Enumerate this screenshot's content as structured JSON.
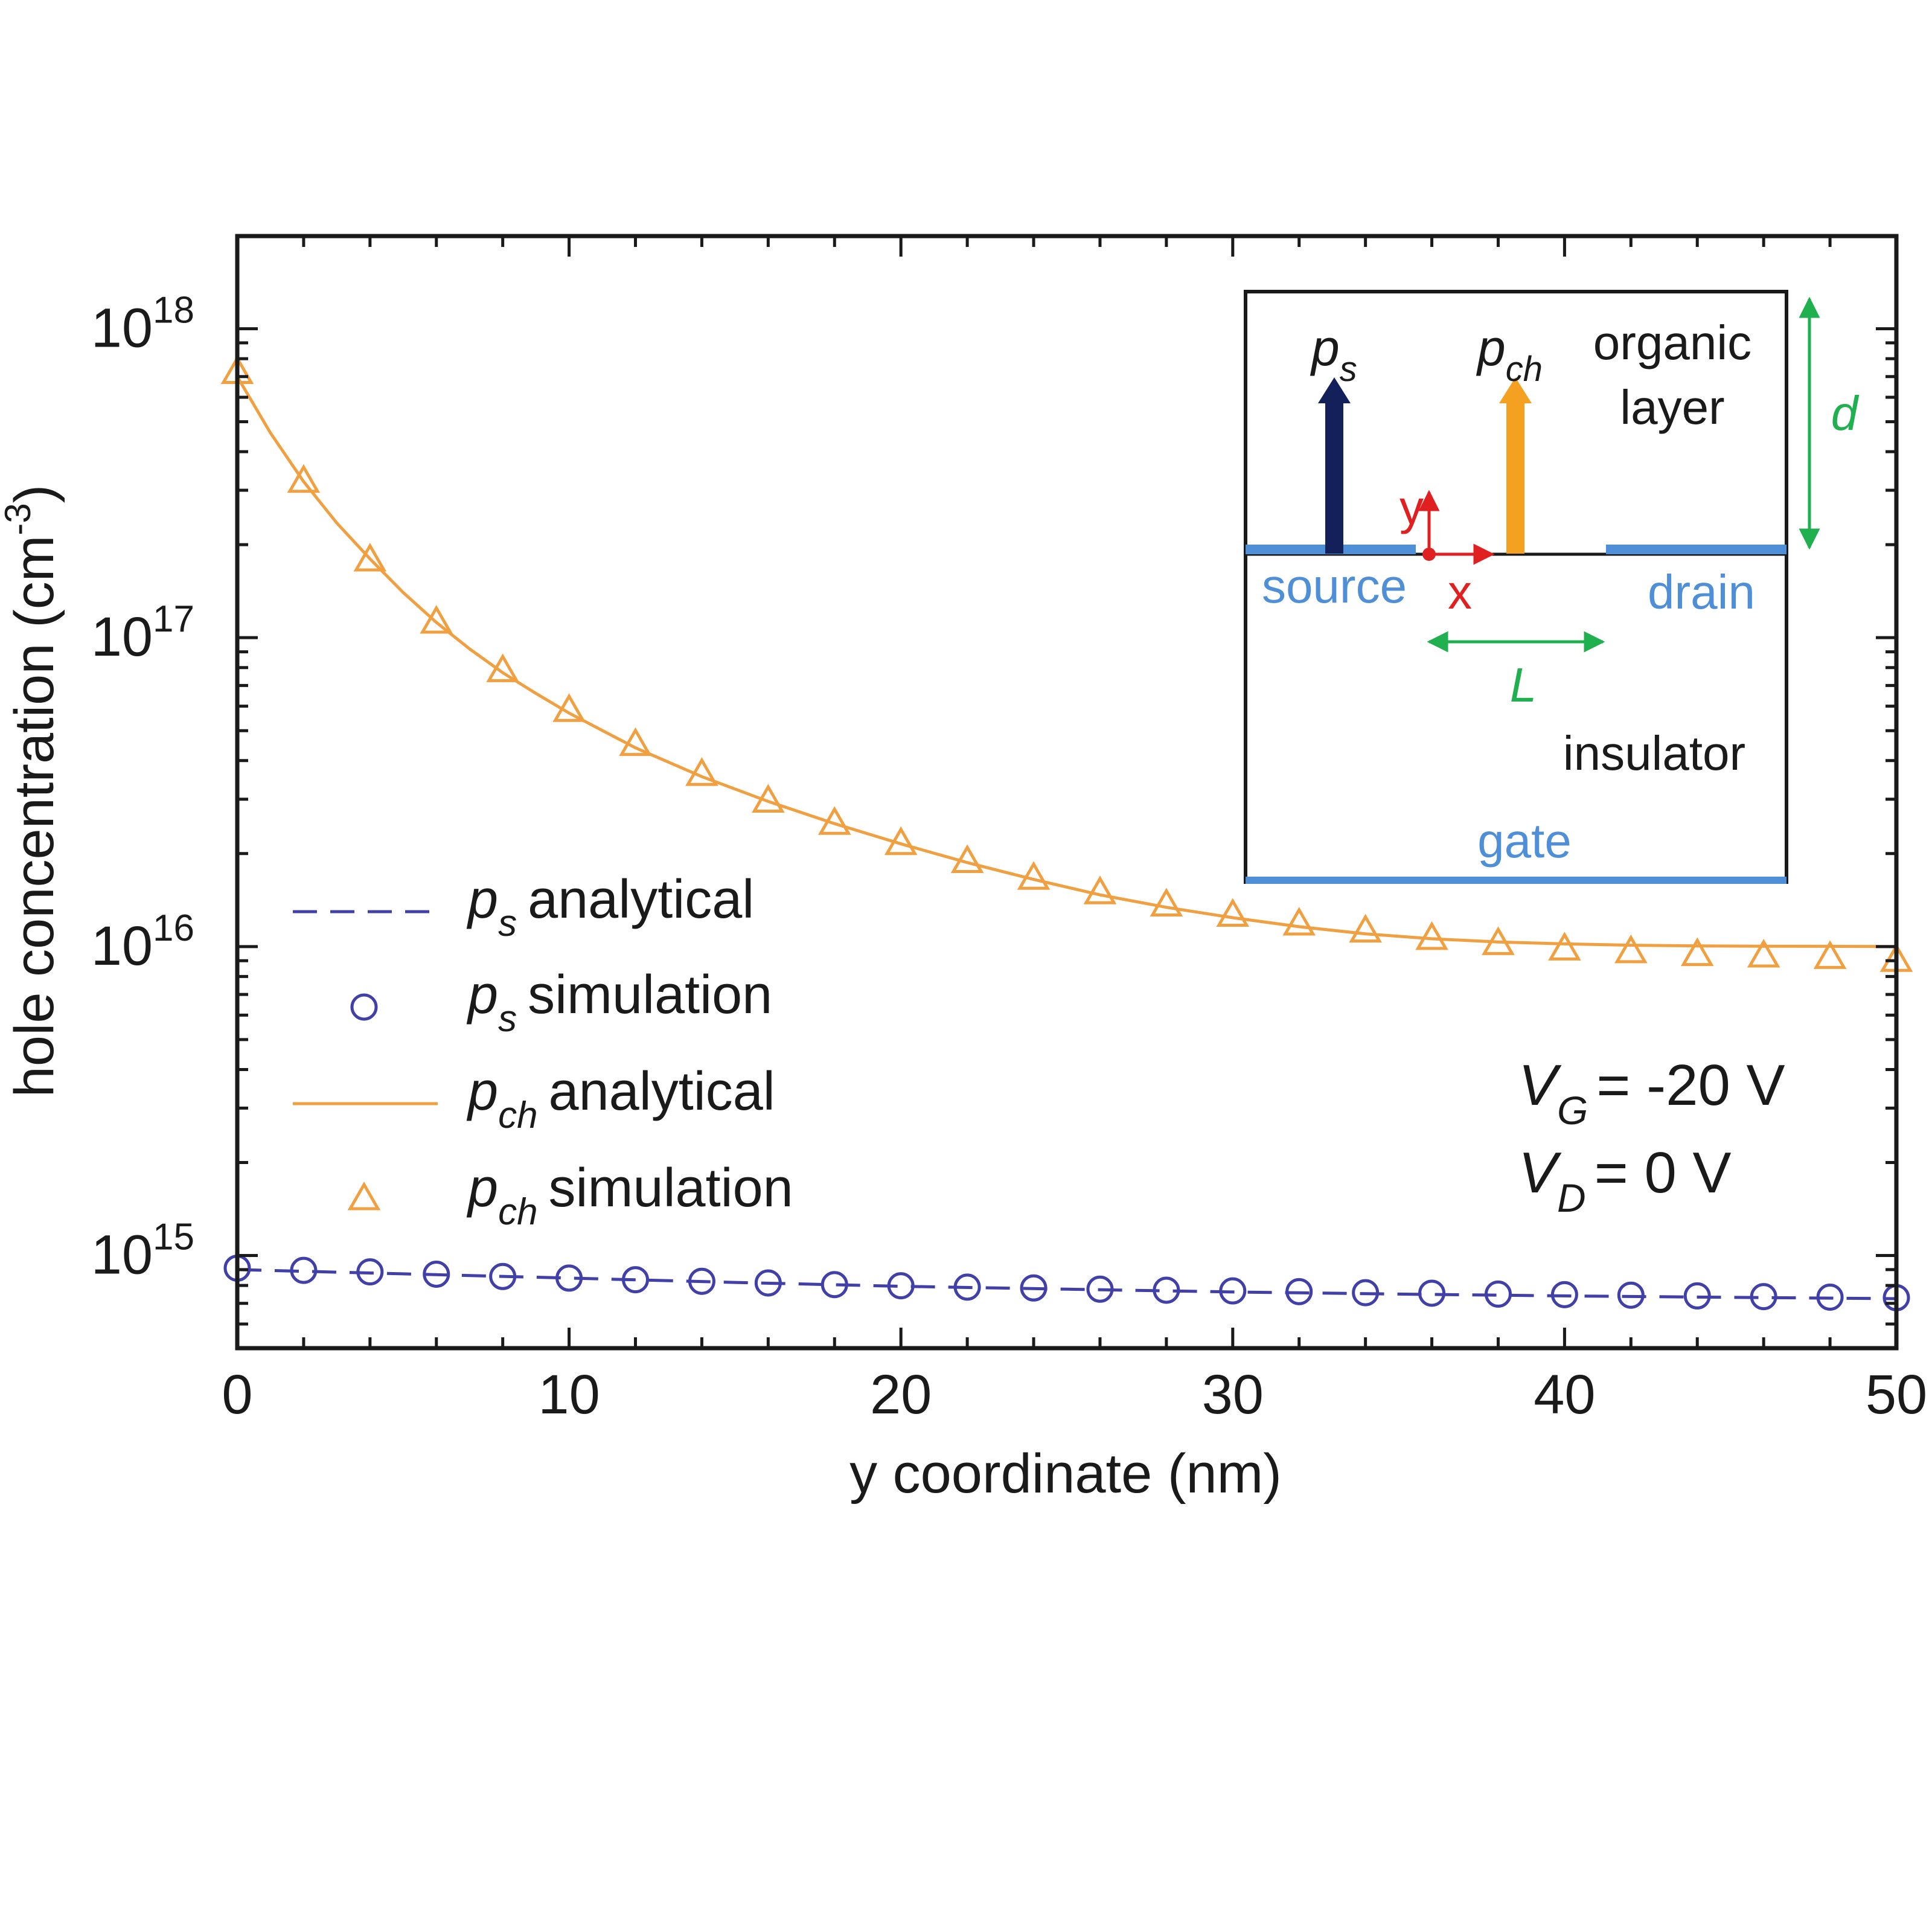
{
  "chart_data": {
    "type": "line",
    "xlabel": "y coordinate (nm)",
    "ylabel": {
      "base": "hole concentration (cm",
      "sup": "-3",
      "tail": ")"
    },
    "xlim": [
      0,
      50
    ],
    "ylim_log10": [
      14.7,
      18.3
    ],
    "x_ticks": [
      "0",
      "10",
      "20",
      "30",
      "40",
      "50"
    ],
    "y_ticks": [
      {
        "base": "10",
        "exp": "15"
      },
      {
        "base": "10",
        "exp": "16"
      },
      {
        "base": "10",
        "exp": "17"
      },
      {
        "base": "10",
        "exp": "18"
      }
    ],
    "y_tick_log_values": [
      15,
      16,
      17,
      18
    ],
    "series": [
      {
        "name": "ps analytical",
        "label_main": "p",
        "label_sub": "s",
        "label_rest": "analytical",
        "style": "dashed",
        "color": "#4040a8",
        "x": [
          0,
          5,
          10,
          15,
          20,
          25,
          30,
          35,
          40,
          45,
          50
        ],
        "y": [
          900000000000000.0,
          872000000000000.0,
          845000000000000.0,
          818000000000000.0,
          795000000000000.0,
          778000000000000.0,
          762000000000000.0,
          750000000000000.0,
          740000000000000.0,
          732000000000000.0,
          725000000000000.0
        ]
      },
      {
        "name": "ps simulation",
        "label_main": "p",
        "label_sub": "s",
        "label_rest": "simulation",
        "style": "circle",
        "color": "#4040a8",
        "x": [
          0,
          2,
          4,
          6,
          8,
          10,
          12,
          14,
          16,
          18,
          20,
          22,
          24,
          26,
          28,
          30,
          32,
          34,
          36,
          38,
          40,
          42,
          44,
          46,
          48,
          50
        ],
        "y": [
          910000000000000.0,
          895000000000000.0,
          885000000000000.0,
          870000000000000.0,
          855000000000000.0,
          845000000000000.0,
          835000000000000.0,
          825000000000000.0,
          815000000000000.0,
          805000000000000.0,
          798000000000000.0,
          790000000000000.0,
          785000000000000.0,
          778000000000000.0,
          772000000000000.0,
          768000000000000.0,
          764000000000000.0,
          758000000000000.0,
          755000000000000.0,
          750000000000000.0,
          747000000000000.0,
          744000000000000.0,
          740000000000000.0,
          736000000000000.0,
          733000000000000.0,
          730000000000000.0
        ]
      },
      {
        "name": "pch analytical",
        "label_main": "p",
        "label_sub": "ch",
        "label_rest": "analytical",
        "style": "solid",
        "color": "#f0a040",
        "x": [
          0,
          1,
          2,
          3,
          4,
          5,
          6,
          7,
          8,
          9,
          10,
          12,
          14,
          16,
          18,
          20,
          22,
          24,
          26,
          28,
          30,
          32,
          34,
          36,
          38,
          40,
          42,
          44,
          46,
          48,
          50
        ],
        "y": [
          7e+17,
          4.6e+17,
          3.2e+17,
          2.35e+17,
          1.8e+17,
          1.4e+17,
          1.12e+17,
          9.2e+16,
          7.7e+16,
          6.6e+16,
          5.7e+16,
          4.4e+16,
          3.55e+16,
          2.95e+16,
          2.5e+16,
          2.15e+16,
          1.87e+16,
          1.65e+16,
          1.47e+16,
          1.34e+16,
          1.24e+16,
          1.16e+16,
          1.1e+16,
          1.06e+16,
          1.035e+16,
          1.02e+16,
          1.01e+16,
          1.005e+16,
          1.003e+16,
          1.002e+16,
          1e+16
        ]
      },
      {
        "name": "pch simulation",
        "label_main": "p",
        "label_sub": "ch",
        "label_rest": "simulation",
        "style": "triangle",
        "color": "#f0a040",
        "x": [
          0,
          2,
          4,
          6,
          8,
          10,
          12,
          14,
          16,
          18,
          20,
          22,
          24,
          26,
          28,
          30,
          32,
          34,
          36,
          38,
          40,
          42,
          44,
          46,
          48,
          50
        ],
        "y": [
          7.2e+17,
          3.2e+17,
          1.78e+17,
          1.12e+17,
          7.8e+16,
          5.8e+16,
          4.5e+16,
          3.6e+16,
          2.95e+16,
          2.5e+16,
          2.15e+16,
          1.88e+16,
          1.66e+16,
          1.49e+16,
          1.36e+16,
          1.26e+16,
          1.18e+16,
          1.12e+16,
          1.06e+16,
          1.02e+16,
          9800000000000000.0,
          9600000000000000.0,
          9400000000000000.0,
          9300000000000000.0,
          9200000000000000.0,
          9000000000000000.0
        ]
      }
    ],
    "legend_position": "lower-left",
    "annotation": {
      "vg_main": "V",
      "vg_sub": "G",
      "vg_value": "= -20 V",
      "vd_main": "V",
      "vd_sub": "D",
      "vd_value": "= 0 V"
    },
    "inset": {
      "ps_main": "p",
      "ps_sub": "s",
      "pch_main": "p",
      "pch_sub": "ch",
      "organic_line1": "organic",
      "organic_line2": "layer",
      "d_label": "d",
      "y_label": "y",
      "x_label": "x",
      "source_label": "source",
      "drain_label": "drain",
      "L_label": "L",
      "insulator_label": "insulator",
      "gate_label": "gate",
      "colors": {
        "ps_arrow": "#14205a",
        "pch_arrow": "#f4a020",
        "electrode": "#4f8fd8",
        "axes": "#e02020",
        "dimension": "#20b050"
      }
    }
  }
}
